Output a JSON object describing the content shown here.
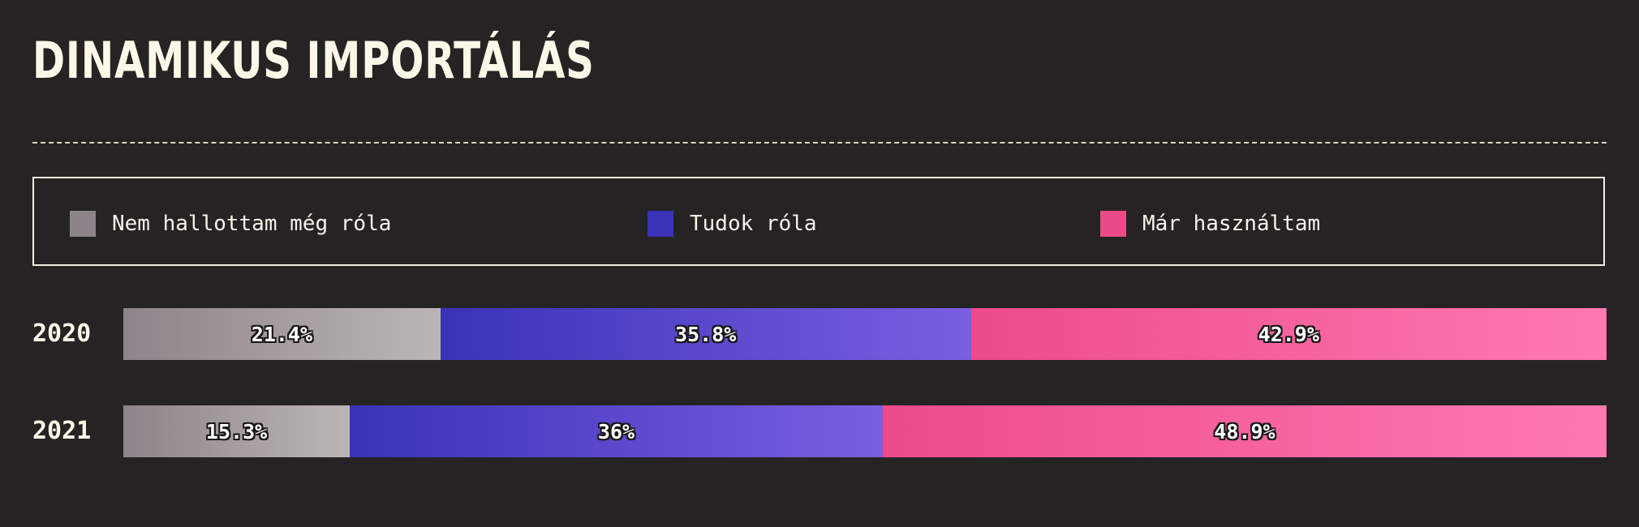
{
  "title": "DINAMIKUS IMPORTÁLÁS",
  "chart_data": {
    "type": "bar",
    "orientation": "horizontal",
    "stacked": true,
    "unit": "%",
    "categories": [
      "2020",
      "2021"
    ],
    "series": [
      {
        "name": "Nem hallottam még róla",
        "color": "#8d8489",
        "gradient_end": "#bcb5b6",
        "values": [
          21.4,
          15.3
        ],
        "labels": [
          "21.4%",
          "15.3%"
        ]
      },
      {
        "name": "Tudok róla",
        "color": "#3a32b8",
        "gradient_end": "#7a5fe0",
        "values": [
          35.8,
          36
        ],
        "labels": [
          "35.8%",
          "36%"
        ]
      },
      {
        "name": "Már használtam",
        "color": "#ec4b89",
        "gradient_end": "#ff79b3",
        "values": [
          42.9,
          48.9
        ],
        "labels": [
          "42.9%",
          "48.9%"
        ]
      }
    ],
    "legend_position": "top",
    "grid": false
  }
}
